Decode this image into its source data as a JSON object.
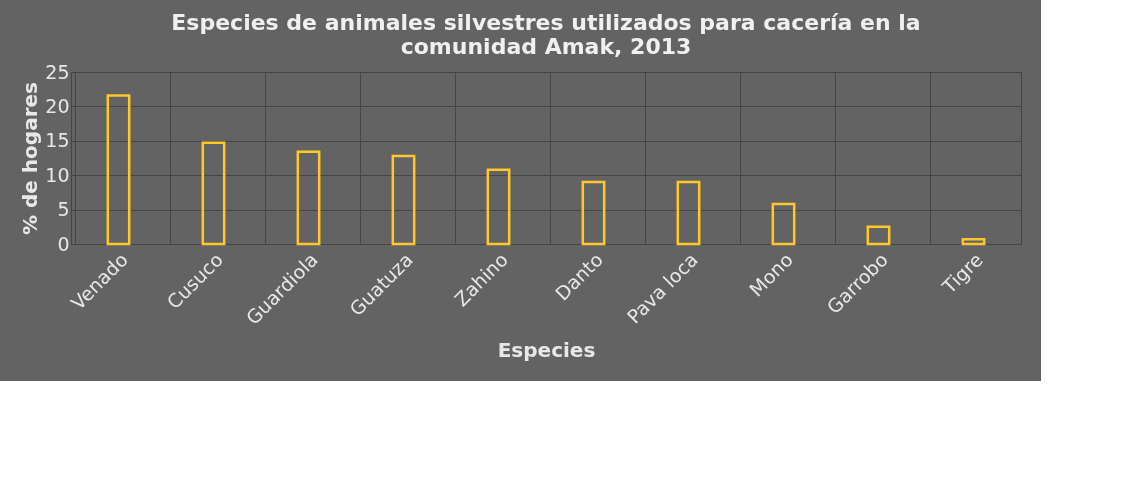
{
  "chart_data": {
    "type": "bar",
    "title": "Especies de animales silvestres utilizados para cacería en la comunidad Amak, 2013",
    "xlabel": "Especies",
    "ylabel": "% de hogares",
    "categories": [
      "Venado",
      "Cusuco",
      "Guardiola",
      "Guatuza",
      "Zahino",
      "Danto",
      "Pava loca",
      "Mono",
      "Garrobo",
      "Tigre"
    ],
    "values": [
      21.6,
      14.7,
      13.4,
      12.8,
      10.8,
      9.0,
      9.0,
      5.8,
      2.5,
      0.7
    ],
    "color": "#ffc729",
    "ylim": [
      0,
      25
    ],
    "yticks": [
      0,
      5,
      10,
      15,
      20,
      25
    ],
    "grid": true
  }
}
